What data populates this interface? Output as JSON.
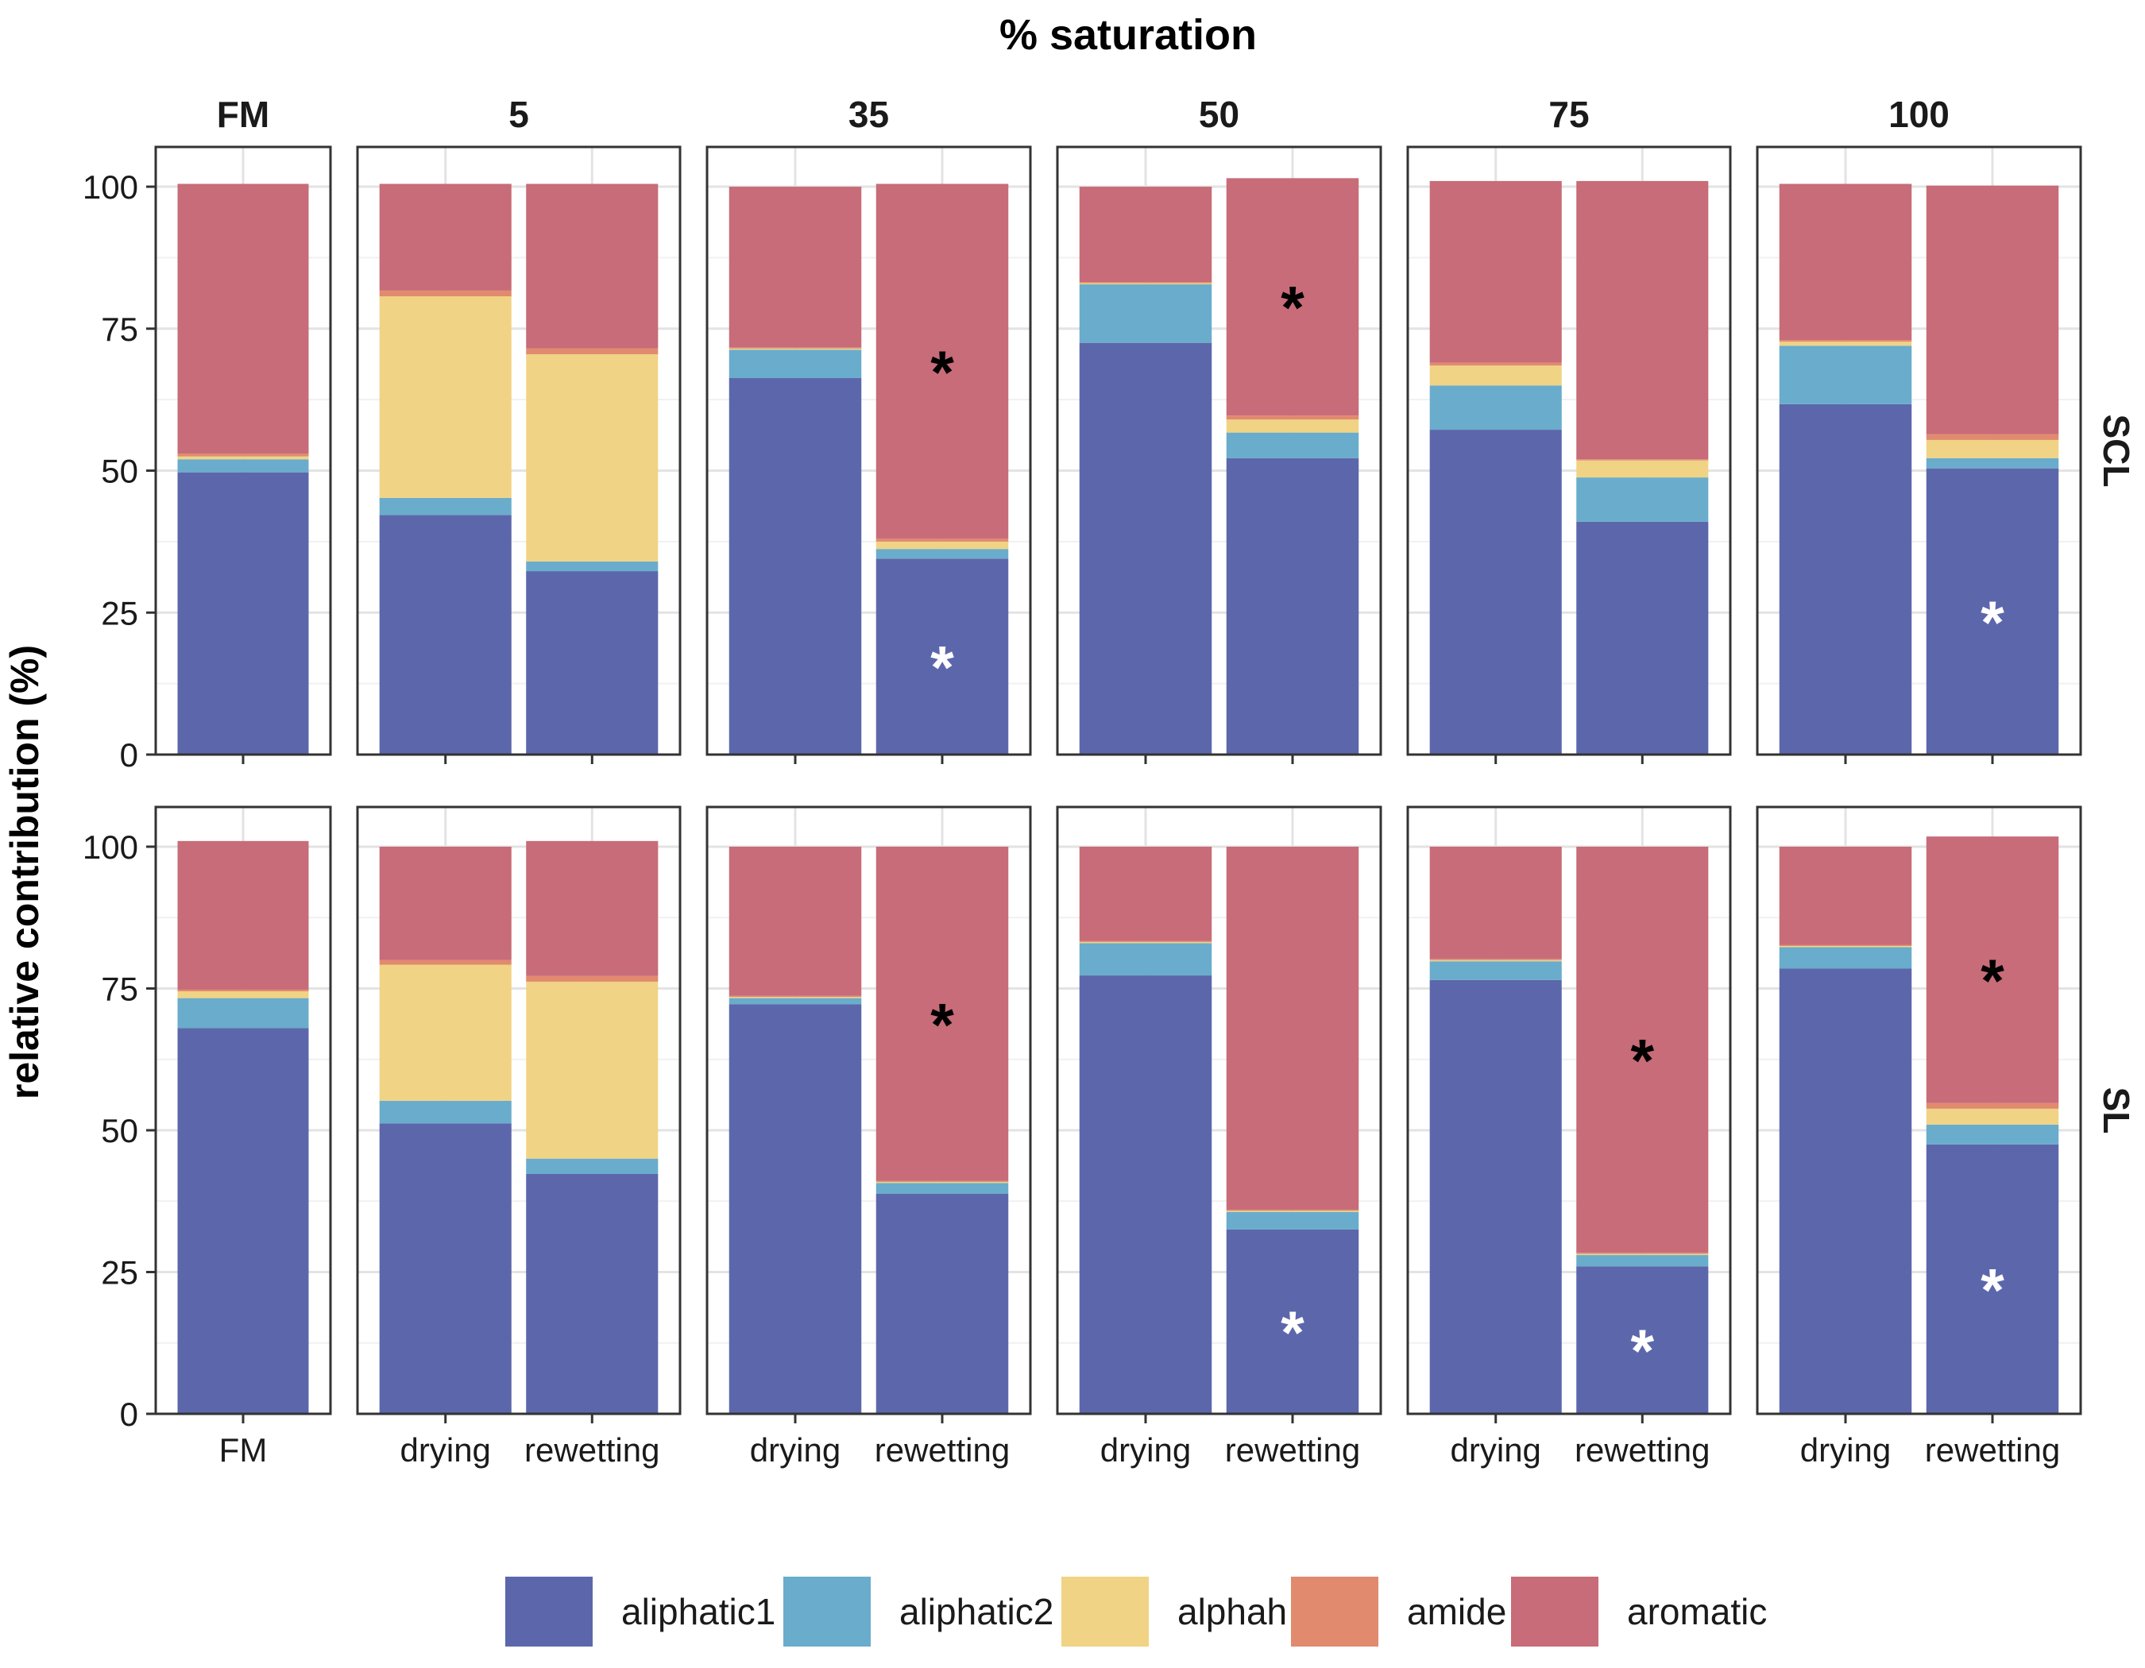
{
  "chart_data": {
    "type": "bar",
    "stacked": true,
    "title": "% saturation",
    "ylabel": "relative contribution (%)",
    "ylim": [
      0,
      107
    ],
    "yticks": [
      0,
      25,
      50,
      75,
      100
    ],
    "column_facets": [
      "FM",
      "5",
      "35",
      "50",
      "75",
      "100"
    ],
    "row_facets": [
      "SCL",
      "SL"
    ],
    "categories": [
      "FM",
      "drying",
      "rewetting"
    ],
    "series_names": [
      "aliphatic1",
      "aliphatic2",
      "alphah",
      "amide",
      "aromatic"
    ],
    "colors": {
      "aliphatic1": "#5c67ab",
      "aliphatic2": "#6aaccb",
      "alphah": "#f0d384",
      "amide": "#e18a6e",
      "aromatic": "#c76c78"
    },
    "legend_position": "bottom",
    "grid": true,
    "panels": [
      {
        "row": "SCL",
        "col": "FM",
        "bars": [
          {
            "x": "FM",
            "values": {
              "aromatic": 47.5,
              "amide": 0.5,
              "alphah": 0.5,
              "aliphatic2": 2.3,
              "aliphatic1": 49.7
            },
            "stars": {}
          }
        ]
      },
      {
        "row": "SCL",
        "col": "5",
        "bars": [
          {
            "x": "drying",
            "values": {
              "aromatic": 18.8,
              "amide": 1.0,
              "alphah": 35.5,
              "aliphatic2": 3.0,
              "aliphatic1": 42.2
            },
            "stars": {}
          },
          {
            "x": "rewetting",
            "values": {
              "aromatic": 29.0,
              "amide": 1.0,
              "alphah": 36.5,
              "aliphatic2": 1.7,
              "aliphatic1": 32.3
            },
            "stars": {}
          }
        ]
      },
      {
        "row": "SCL",
        "col": "35",
        "bars": [
          {
            "x": "drying",
            "values": {
              "aromatic": 28.3,
              "amide": 0.2,
              "alphah": 0.2,
              "aliphatic2": 5.0,
              "aliphatic1": 66.3
            },
            "stars": {}
          },
          {
            "x": "rewetting",
            "values": {
              "aromatic": 62.5,
              "amide": 0.5,
              "alphah": 1.3,
              "aliphatic2": 1.7,
              "aliphatic1": 34.5
            },
            "stars": {
              "aliphatic1": "*",
              "aromatic": "*"
            }
          }
        ]
      },
      {
        "row": "SCL",
        "col": "50",
        "bars": [
          {
            "x": "drying",
            "values": {
              "aromatic": 16.8,
              "amide": 0.2,
              "alphah": 0.2,
              "aliphatic2": 10.3,
              "aliphatic1": 72.5
            },
            "stars": {}
          },
          {
            "x": "rewetting",
            "values": {
              "aromatic": 41.8,
              "amide": 0.7,
              "alphah": 2.3,
              "aliphatic2": 4.5,
              "aliphatic1": 52.2
            },
            "stars": {
              "aromatic": "*"
            }
          }
        ]
      },
      {
        "row": "SCL",
        "col": "75",
        "bars": [
          {
            "x": "drying",
            "values": {
              "aromatic": 32.0,
              "amide": 0.5,
              "alphah": 3.5,
              "aliphatic2": 7.8,
              "aliphatic1": 57.2
            },
            "stars": {}
          },
          {
            "x": "rewetting",
            "values": {
              "aromatic": 49.0,
              "amide": 0.2,
              "alphah": 3.0,
              "aliphatic2": 7.8,
              "aliphatic1": 41.0
            },
            "stars": {}
          }
        ]
      },
      {
        "row": "SCL",
        "col": "100",
        "bars": [
          {
            "x": "drying",
            "values": {
              "aromatic": 27.5,
              "amide": 0.3,
              "alphah": 0.7,
              "aliphatic2": 10.3,
              "aliphatic1": 61.7
            },
            "stars": {}
          },
          {
            "x": "rewetting",
            "values": {
              "aromatic": 43.8,
              "amide": 1.0,
              "alphah": 3.2,
              "aliphatic2": 1.8,
              "aliphatic1": 50.4
            },
            "stars": {
              "aliphatic1": "*"
            }
          }
        ]
      },
      {
        "row": "SL",
        "col": "FM",
        "bars": [
          {
            "x": "FM",
            "values": {
              "aromatic": 26.2,
              "amide": 0.3,
              "alphah": 1.2,
              "aliphatic2": 5.3,
              "aliphatic1": 68.0
            },
            "stars": {}
          }
        ]
      },
      {
        "row": "SL",
        "col": "5",
        "bars": [
          {
            "x": "drying",
            "values": {
              "aromatic": 20.0,
              "amide": 0.8,
              "alphah": 24.0,
              "aliphatic2": 4.0,
              "aliphatic1": 51.2
            },
            "stars": {}
          },
          {
            "x": "rewetting",
            "values": {
              "aromatic": 23.8,
              "amide": 1.0,
              "alphah": 31.2,
              "aliphatic2": 2.7,
              "aliphatic1": 42.3
            },
            "stars": {}
          }
        ]
      },
      {
        "row": "SL",
        "col": "35",
        "bars": [
          {
            "x": "drying",
            "values": {
              "aromatic": 26.3,
              "amide": 0.2,
              "alphah": 0.2,
              "aliphatic2": 1.1,
              "aliphatic1": 72.2
            },
            "stars": {}
          },
          {
            "x": "rewetting",
            "values": {
              "aromatic": 58.9,
              "amide": 0.2,
              "alphah": 0.2,
              "aliphatic2": 1.9,
              "aliphatic1": 38.8
            },
            "stars": {
              "aromatic": "*"
            }
          }
        ]
      },
      {
        "row": "SL",
        "col": "50",
        "bars": [
          {
            "x": "drying",
            "values": {
              "aromatic": 16.6,
              "amide": 0.2,
              "alphah": 0.2,
              "aliphatic2": 5.7,
              "aliphatic1": 77.3
            },
            "stars": {}
          },
          {
            "x": "rewetting",
            "values": {
              "aromatic": 64.0,
              "amide": 0.2,
              "alphah": 0.2,
              "aliphatic2": 3.1,
              "aliphatic1": 32.5
            },
            "stars": {
              "aliphatic1": "*"
            }
          }
        ]
      },
      {
        "row": "SL",
        "col": "75",
        "bars": [
          {
            "x": "drying",
            "values": {
              "aromatic": 19.8,
              "amide": 0.2,
              "alphah": 0.2,
              "aliphatic2": 3.3,
              "aliphatic1": 76.5
            },
            "stars": {}
          },
          {
            "x": "rewetting",
            "values": {
              "aromatic": 71.6,
              "amide": 0.2,
              "alphah": 0.2,
              "aliphatic2": 2.0,
              "aliphatic1": 26.0
            },
            "stars": {
              "aliphatic1": "*",
              "aromatic": "*"
            }
          }
        ]
      },
      {
        "row": "SL",
        "col": "100",
        "bars": [
          {
            "x": "drying",
            "values": {
              "aromatic": 17.3,
              "amide": 0.2,
              "alphah": 0.2,
              "aliphatic2": 3.8,
              "aliphatic1": 78.5
            },
            "stars": {}
          },
          {
            "x": "rewetting",
            "values": {
              "aromatic": 47.0,
              "amide": 1.0,
              "alphah": 2.8,
              "aliphatic2": 3.5,
              "aliphatic1": 47.5
            },
            "stars": {
              "aliphatic1": "*",
              "aromatic": "*"
            }
          }
        ]
      }
    ]
  }
}
